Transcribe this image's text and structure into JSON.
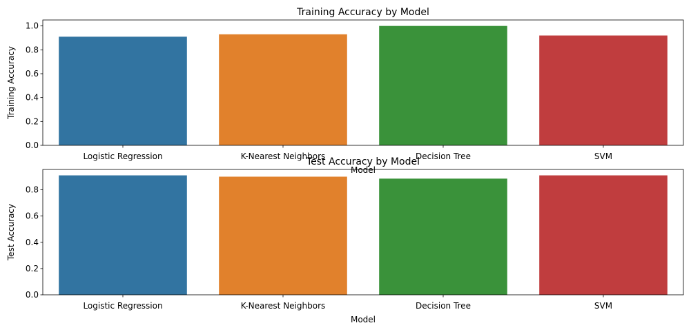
{
  "chart_data": [
    {
      "type": "bar",
      "title": "Training Accuracy by Model",
      "xlabel": "Model",
      "ylabel": "Training Accuracy",
      "categories": [
        "Logistic Regression",
        "K-Nearest Neighbors",
        "Decision Tree",
        "SVM"
      ],
      "values": [
        0.91,
        0.93,
        1.0,
        0.92
      ],
      "ylim": [
        0,
        1.05
      ],
      "yticks": [
        "0.0",
        "0.2",
        "0.4",
        "0.6",
        "0.8",
        "1.0"
      ],
      "colors": [
        "#3274a1",
        "#e1812c",
        "#3a923a",
        "#c03d3e"
      ],
      "grid": false
    },
    {
      "type": "bar",
      "title": "Test Accuracy by Model",
      "xlabel": "Model",
      "ylabel": "Test Accuracy",
      "categories": [
        "Logistic Regression",
        "K-Nearest Neighbors",
        "Decision Tree",
        "SVM"
      ],
      "values": [
        0.91,
        0.9,
        0.885,
        0.91
      ],
      "ylim": [
        0,
        0.955
      ],
      "yticks": [
        "0.0",
        "0.2",
        "0.4",
        "0.6",
        "0.8"
      ],
      "colors": [
        "#3274a1",
        "#e1812c",
        "#3a923a",
        "#c03d3e"
      ],
      "grid": false
    }
  ]
}
